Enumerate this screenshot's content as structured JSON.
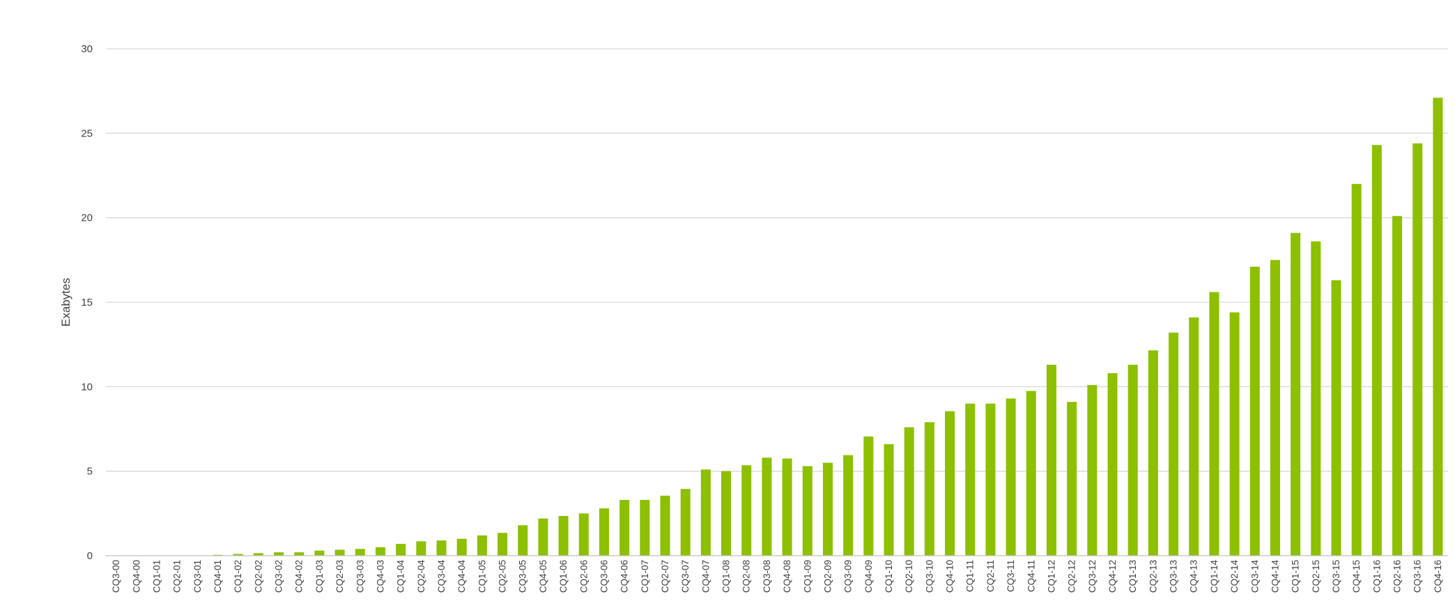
{
  "chart_data": {
    "type": "bar",
    "title": "",
    "xlabel": "",
    "ylabel": "Exabytes",
    "ylim": [
      0,
      30
    ],
    "yticks": [
      0,
      5,
      10,
      15,
      20,
      25,
      30
    ],
    "grid": true,
    "legend": "none",
    "bar_color": "#8cc000",
    "categories": [
      "CQ3-00",
      "CQ4-00",
      "CQ1-01",
      "CQ2-01",
      "CQ3-01",
      "CQ4-01",
      "CQ1-02",
      "CQ2-02",
      "CQ3-02",
      "CQ4-02",
      "CQ1-03",
      "CQ2-03",
      "CQ3-03",
      "CQ4-03",
      "CQ1-04",
      "CQ2-04",
      "CQ3-04",
      "CQ4-04",
      "CQ1-05",
      "CQ2-05",
      "CQ3-05",
      "CQ4-05",
      "CQ1-06",
      "CQ2-06",
      "CQ3-06",
      "CQ4-06",
      "CQ1-07",
      "CQ2-07",
      "CQ3-07",
      "CQ4-07",
      "CQ1-08",
      "CQ2-08",
      "CQ3-08",
      "CQ4-08",
      "CQ1-09",
      "CQ2-09",
      "CQ3-09",
      "CQ4-09",
      "CQ1-10",
      "CQ2-10",
      "CQ3-10",
      "CQ4-10",
      "CQ1-11",
      "CQ2-11",
      "CQ3-11",
      "CQ4-11",
      "CQ1-12",
      "CQ2-12",
      "CQ3-12",
      "CQ4-12",
      "CQ1-13",
      "CQ2-13",
      "CQ3-13",
      "CQ4-13",
      "CQ1-14",
      "CQ2-14",
      "CQ3-14",
      "CQ4-14",
      "CQ1-15",
      "CQ2-15",
      "CQ3-15",
      "CQ4-15",
      "CQ1-16",
      "CQ2-16",
      "CQ3-16",
      "CQ4-16"
    ],
    "values": [
      0,
      0,
      0,
      0,
      0,
      0.05,
      0.1,
      0.15,
      0.2,
      0.2,
      0.3,
      0.35,
      0.4,
      0.5,
      0.7,
      0.85,
      0.9,
      1.0,
      1.2,
      1.35,
      1.8,
      2.2,
      2.35,
      2.5,
      2.8,
      3.3,
      3.3,
      3.55,
      3.95,
      5.1,
      5.0,
      5.35,
      5.8,
      5.75,
      5.3,
      5.5,
      5.95,
      7.05,
      6.6,
      7.6,
      7.9,
      8.55,
      9.0,
      9.0,
      9.3,
      9.75,
      11.3,
      9.1,
      10.1,
      10.8,
      11.3,
      12.15,
      13.2,
      14.1,
      15.6,
      14.4,
      17.1,
      17.5,
      19.1,
      18.6,
      16.3,
      22.0,
      24.3,
      20.1,
      24.4,
      27.1
    ]
  }
}
